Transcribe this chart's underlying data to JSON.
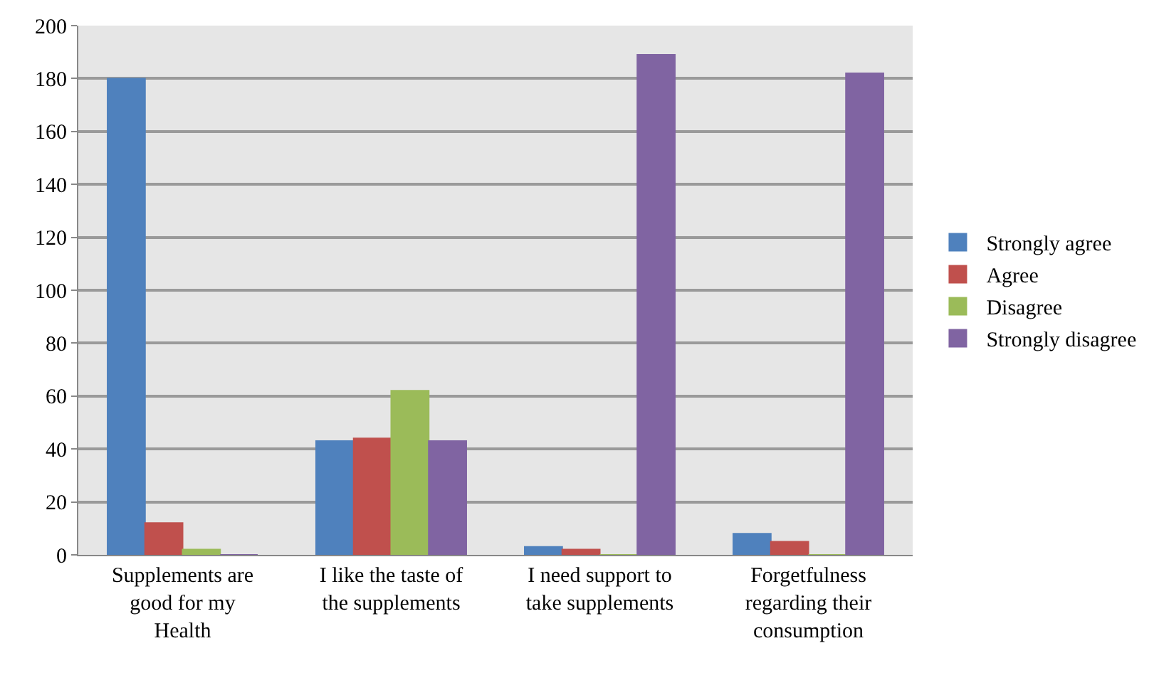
{
  "chart_data": {
    "type": "bar",
    "categories": [
      "Supplements are\ngood for my\nHealth",
      "I like the taste of\nthe supplements",
      "I need support to\ntake supplements",
      "Forgetfulness\nregarding their\nconsumption"
    ],
    "series": [
      {
        "name": "Strongly agree",
        "color": "#4f81bd",
        "values": [
          180,
          43,
          3,
          8
        ]
      },
      {
        "name": "Agree",
        "color": "#c0504d",
        "values": [
          12,
          44,
          2,
          5
        ]
      },
      {
        "name": "Disagree",
        "color": "#9bbb59",
        "values": [
          2,
          62,
          0,
          0
        ]
      },
      {
        "name": "Strongly disagree",
        "color": "#8064a2",
        "values": [
          0,
          43,
          189,
          182
        ]
      }
    ],
    "ylim": [
      0,
      200
    ],
    "yticks": [
      0,
      20,
      40,
      60,
      80,
      100,
      120,
      140,
      160,
      180,
      200
    ],
    "grid": "y",
    "legend": "right"
  }
}
